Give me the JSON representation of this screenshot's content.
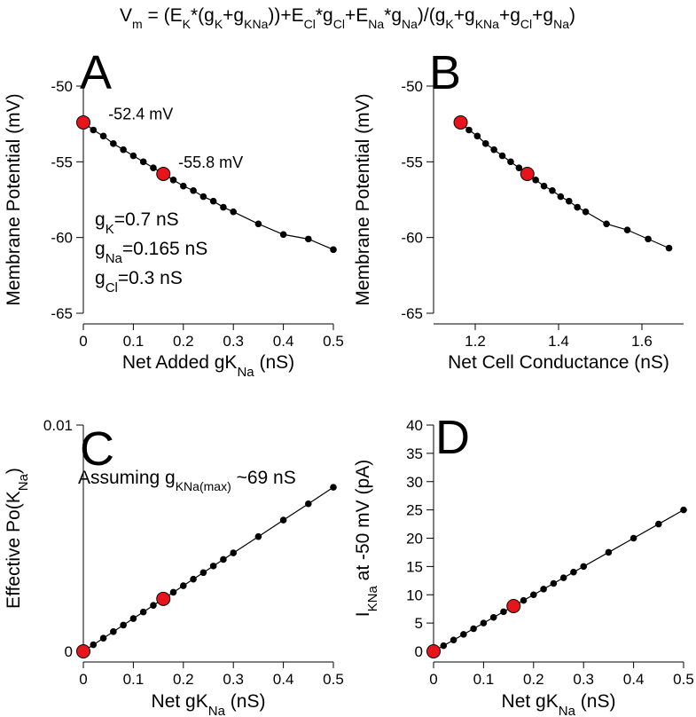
{
  "equation": {
    "parts": [
      {
        "t": "V",
        "s": "n"
      },
      {
        "t": "m",
        "s": "sub"
      },
      {
        "t": " = (E",
        "s": "n"
      },
      {
        "t": "K",
        "s": "sub"
      },
      {
        "t": "*(g",
        "s": "n"
      },
      {
        "t": "K",
        "s": "sub"
      },
      {
        "t": "+g",
        "s": "n"
      },
      {
        "t": "KNa",
        "s": "sub"
      },
      {
        "t": "))+E",
        "s": "n"
      },
      {
        "t": "Cl",
        "s": "sub"
      },
      {
        "t": "*g",
        "s": "n"
      },
      {
        "t": "Cl",
        "s": "sub"
      },
      {
        "t": "+E",
        "s": "n"
      },
      {
        "t": "Na",
        "s": "sub"
      },
      {
        "t": "*g",
        "s": "n"
      },
      {
        "t": "Na",
        "s": "sub"
      },
      {
        "t": ")/(g",
        "s": "n"
      },
      {
        "t": "K",
        "s": "sub"
      },
      {
        "t": "+g",
        "s": "n"
      },
      {
        "t": "KNa",
        "s": "sub"
      },
      {
        "t": "+g",
        "s": "n"
      },
      {
        "t": "Cl",
        "s": "sub"
      },
      {
        "t": "+g",
        "s": "n"
      },
      {
        "t": "Na",
        "s": "sub"
      },
      {
        "t": ")",
        "s": "n"
      }
    ]
  },
  "colors": {
    "highlight": "#e8141c",
    "line": "#000000"
  },
  "chart_data": [
    {
      "id": "A",
      "type": "line",
      "panel_letter": "A",
      "xlabel": [
        {
          "t": "Net Added gK",
          "s": "n"
        },
        {
          "t": "Na",
          "s": "sub"
        },
        {
          "t": " (nS)",
          "s": "n"
        }
      ],
      "ylabel": [
        {
          "t": "Membrane Potential (mV)",
          "s": "n"
        }
      ],
      "xlim": [
        0,
        0.5
      ],
      "ylim": [
        -65,
        -50
      ],
      "xticks": [
        0,
        0.1,
        0.2,
        0.3,
        0.4,
        0.5
      ],
      "xtick_labels": [
        "0",
        "0.1",
        "0.2",
        "0.3",
        "0.4",
        "0.5"
      ],
      "yticks": [
        -65,
        -60,
        -55,
        -50
      ],
      "ytick_labels": [
        "-65",
        "-60",
        "-55",
        "-50"
      ],
      "x": [
        0,
        0.02,
        0.04,
        0.06,
        0.08,
        0.1,
        0.12,
        0.14,
        0.16,
        0.18,
        0.2,
        0.22,
        0.24,
        0.26,
        0.28,
        0.3,
        0.35,
        0.4,
        0.45,
        0.5
      ],
      "y": [
        -52.4,
        -52.9,
        -53.3,
        -53.8,
        -54.2,
        -54.6,
        -55.0,
        -55.4,
        -55.8,
        -56.2,
        -56.6,
        -56.9,
        -57.3,
        -57.6,
        -58.0,
        -58.3,
        -59.1,
        -59.8,
        -60.1,
        -60.8
      ],
      "highlight": [
        {
          "x": 0,
          "y": -52.4
        },
        {
          "x": 0.16,
          "y": -55.8
        }
      ],
      "annotations": [
        {
          "text": "-52.4 mV",
          "x": 0.05,
          "y": -52.2
        },
        {
          "text": "-55.8 mV",
          "x": 0.19,
          "y": -55.4
        }
      ],
      "params": [
        [
          {
            "t": "g",
            "s": "n"
          },
          {
            "t": "K",
            "s": "sub"
          },
          {
            "t": "=0.7 nS",
            "s": "n"
          }
        ],
        [
          {
            "t": "g",
            "s": "n"
          },
          {
            "t": "Na",
            "s": "sub"
          },
          {
            "t": "=0.165 nS",
            "s": "n"
          }
        ],
        [
          {
            "t": "g",
            "s": "n"
          },
          {
            "t": "Cl",
            "s": "sub"
          },
          {
            "t": "=0.3 nS",
            "s": "n"
          }
        ]
      ]
    },
    {
      "id": "B",
      "type": "line",
      "panel_letter": "B",
      "xlabel": [
        {
          "t": "Net Cell Conductance (nS)",
          "s": "n"
        }
      ],
      "ylabel": [
        {
          "t": "Membrane Potential (mV)",
          "s": "n"
        }
      ],
      "xlim": [
        1.1,
        1.7
      ],
      "ylim": [
        -65,
        -50
      ],
      "xticks": [
        1.2,
        1.4,
        1.6
      ],
      "xtick_labels": [
        "1.2",
        "1.4",
        "1.6"
      ],
      "yticks": [
        -65,
        -60,
        -55,
        -50
      ],
      "ytick_labels": [
        "-65",
        "-60",
        "-55",
        "-50"
      ],
      "x": [
        1.165,
        1.185,
        1.205,
        1.225,
        1.245,
        1.265,
        1.285,
        1.305,
        1.325,
        1.345,
        1.365,
        1.385,
        1.405,
        1.425,
        1.445,
        1.465,
        1.515,
        1.565,
        1.615,
        1.665
      ],
      "y": [
        -52.4,
        -52.9,
        -53.3,
        -53.8,
        -54.2,
        -54.6,
        -55.0,
        -55.4,
        -55.8,
        -56.2,
        -56.6,
        -56.9,
        -57.3,
        -57.6,
        -58.0,
        -58.3,
        -59.1,
        -59.5,
        -60.1,
        -60.7
      ],
      "highlight": [
        {
          "x": 1.165,
          "y": -52.4
        },
        {
          "x": 1.325,
          "y": -55.8
        }
      ],
      "annotations": [],
      "params": []
    },
    {
      "id": "C",
      "type": "line",
      "panel_letter": "C",
      "xlabel": [
        {
          "t": "Net gK",
          "s": "n"
        },
        {
          "t": "Na",
          "s": "sub"
        },
        {
          "t": " (nS)",
          "s": "n"
        }
      ],
      "ylabel": [
        {
          "t": "Effective Po(K",
          "s": "n"
        },
        {
          "t": "Na",
          "s": "sub"
        },
        {
          "t": ")",
          "s": "n"
        }
      ],
      "xlim": [
        0,
        0.5
      ],
      "ylim": [
        0,
        0.01
      ],
      "xticks": [
        0,
        0.1,
        0.2,
        0.3,
        0.4,
        0.5
      ],
      "xtick_labels": [
        "0",
        "0.1",
        "0.2",
        "0.3",
        "0.4",
        "0.5"
      ],
      "yticks": [
        0,
        0.01
      ],
      "ytick_labels": [
        "0",
        "0.01"
      ],
      "x": [
        0,
        0.02,
        0.04,
        0.06,
        0.08,
        0.1,
        0.12,
        0.14,
        0.16,
        0.18,
        0.2,
        0.22,
        0.24,
        0.26,
        0.28,
        0.3,
        0.35,
        0.4,
        0.45,
        0.5
      ],
      "y": [
        0,
        0.00029,
        0.00058,
        0.00087,
        0.00116,
        0.00145,
        0.00174,
        0.00203,
        0.00232,
        0.00261,
        0.0029,
        0.00319,
        0.00348,
        0.00377,
        0.00406,
        0.00435,
        0.00507,
        0.0058,
        0.00652,
        0.00725
      ],
      "highlight": [
        {
          "x": 0,
          "y": 0
        },
        {
          "x": 0.16,
          "y": 0.00232
        }
      ],
      "annotations": [],
      "note": [
        {
          "t": "Assuming g",
          "s": "n"
        },
        {
          "t": "KNa(max)",
          "s": "sub"
        },
        {
          "t": " ~69 nS",
          "s": "n"
        }
      ],
      "params": []
    },
    {
      "id": "D",
      "type": "line",
      "panel_letter": "D",
      "xlabel": [
        {
          "t": "Net gK",
          "s": "n"
        },
        {
          "t": "Na",
          "s": "sub"
        },
        {
          "t": " (nS)",
          "s": "n"
        }
      ],
      "ylabel": [
        {
          "t": "I",
          "s": "n"
        },
        {
          "t": "KNa",
          "s": "sub"
        },
        {
          "t": " at -50 mV (pA)",
          "s": "n"
        }
      ],
      "xlim": [
        0,
        0.5
      ],
      "ylim": [
        0,
        40
      ],
      "xticks": [
        0,
        0.1,
        0.2,
        0.3,
        0.4,
        0.5
      ],
      "xtick_labels": [
        "0",
        "0.1",
        "0.2",
        "0.3",
        "0.4",
        "0.5"
      ],
      "yticks": [
        0,
        5,
        10,
        15,
        20,
        25,
        30,
        35,
        40
      ],
      "ytick_labels": [
        "0",
        "5",
        "10",
        "15",
        "20",
        "25",
        "30",
        "35",
        "40"
      ],
      "x": [
        0,
        0.02,
        0.04,
        0.06,
        0.08,
        0.1,
        0.12,
        0.14,
        0.16,
        0.18,
        0.2,
        0.22,
        0.24,
        0.26,
        0.28,
        0.3,
        0.35,
        0.4,
        0.45,
        0.5
      ],
      "y": [
        0,
        1.0,
        2.0,
        3.0,
        4.0,
        5.0,
        6.0,
        7.0,
        8.0,
        9.0,
        10.0,
        11.0,
        12.0,
        13.0,
        14.0,
        15.0,
        17.5,
        20.0,
        22.5,
        25.0
      ],
      "highlight": [
        {
          "x": 0,
          "y": 0
        },
        {
          "x": 0.16,
          "y": 8.0
        }
      ],
      "annotations": [],
      "params": []
    }
  ]
}
